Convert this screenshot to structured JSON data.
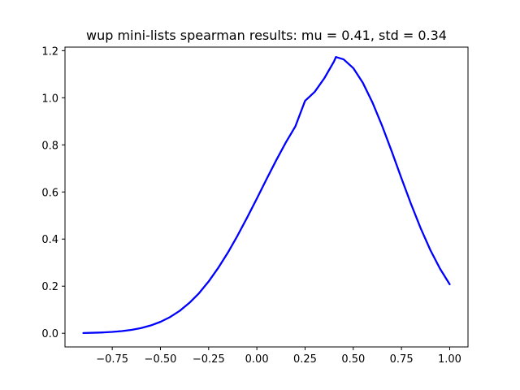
{
  "chart_data": {
    "type": "line",
    "title": "wup mini-lists spearman results: mu = 0.41,  std = 0.34",
    "xlabel": "",
    "ylabel": "",
    "xlim": [
      -0.9,
      1.0
    ],
    "ylim": [
      -0.058,
      1.215
    ],
    "grid": false,
    "legend": "none",
    "x_ticks": [
      "−0.75",
      "−0.50",
      "−0.25",
      "0.00",
      "0.25",
      "0.50",
      "0.75",
      "1.00"
    ],
    "x_tick_values": [
      -0.75,
      -0.5,
      -0.25,
      0.0,
      0.25,
      0.5,
      0.75,
      1.0
    ],
    "y_ticks": [
      "0.0",
      "0.2",
      "0.4",
      "0.6",
      "0.8",
      "1.0",
      "1.2"
    ],
    "y_tick_values": [
      0.0,
      0.2,
      0.4,
      0.6,
      0.8,
      1.0,
      1.2
    ],
    "series": [
      {
        "color": "#0000ff",
        "x": [
          -0.9,
          -0.85,
          -0.8,
          -0.75,
          -0.7,
          -0.65,
          -0.6,
          -0.55,
          -0.5,
          -0.45,
          -0.4,
          -0.35,
          -0.3,
          -0.25,
          -0.2,
          -0.15,
          -0.1,
          -0.05,
          0.0,
          0.05,
          0.1,
          0.15,
          0.2,
          0.25,
          0.3,
          0.35,
          0.4,
          0.41,
          0.45,
          0.5,
          0.55,
          0.6,
          0.65,
          0.7,
          0.75,
          0.8,
          0.85,
          0.9,
          0.95,
          1.0
        ],
        "y": [
          0.0012,
          0.0021,
          0.0035,
          0.0058,
          0.0093,
          0.0146,
          0.0223,
          0.0333,
          0.0485,
          0.0689,
          0.0953,
          0.129,
          0.17,
          0.22,
          0.278,
          0.343,
          0.415,
          0.492,
          0.572,
          0.654,
          0.734,
          0.81,
          0.879,
          0.987,
          1.025,
          1.083,
          1.154,
          1.173,
          1.163,
          1.126,
          1.063,
          0.979,
          0.88,
          0.771,
          0.658,
          0.548,
          0.445,
          0.353,
          0.274,
          0.208
        ]
      }
    ]
  }
}
